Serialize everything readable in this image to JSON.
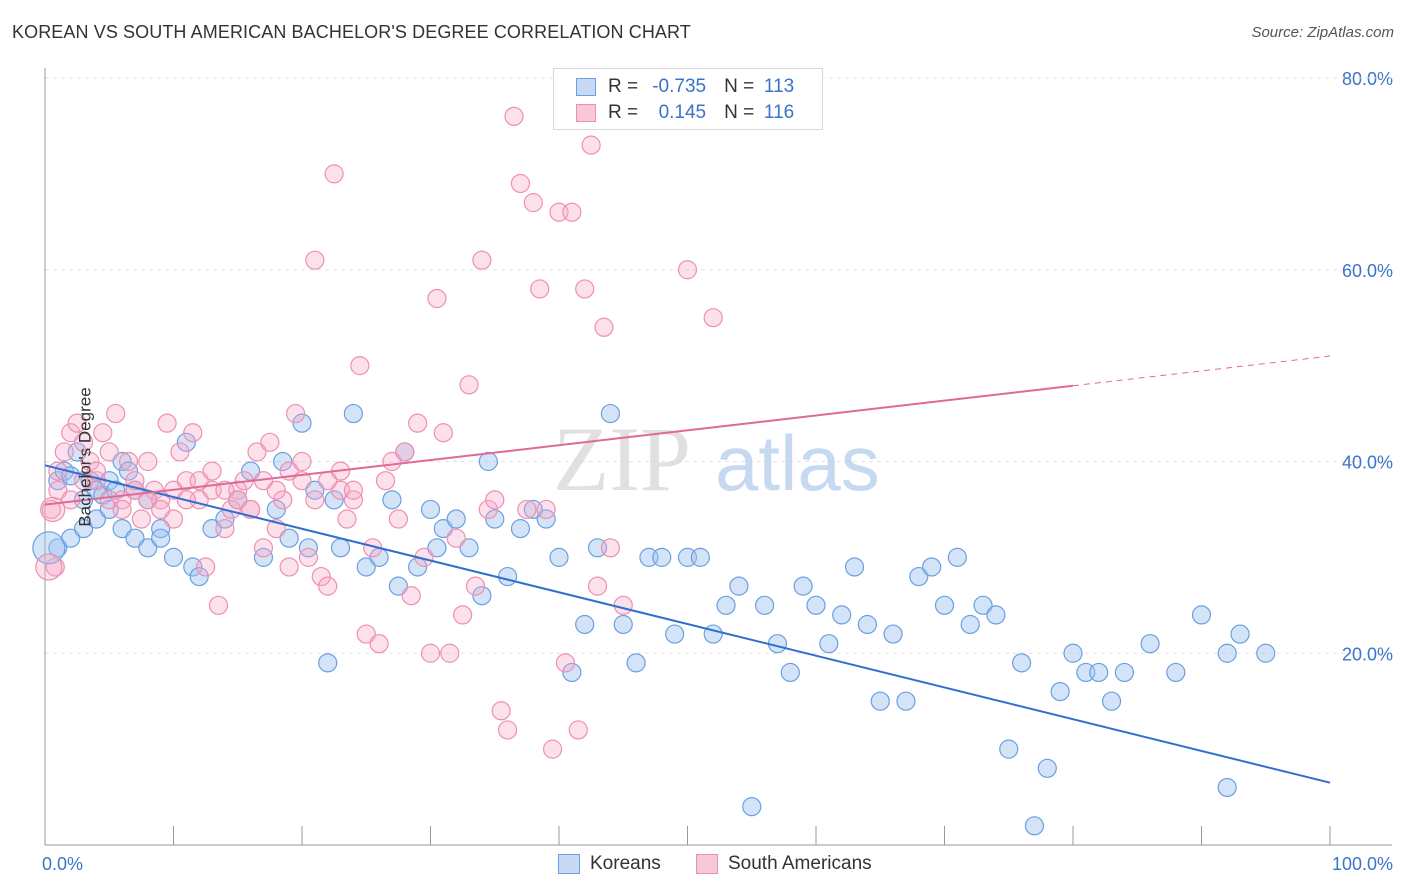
{
  "title": "KOREAN VS SOUTH AMERICAN BACHELOR'S DEGREE CORRELATION CHART",
  "source": "Source: ZipAtlas.com",
  "watermark": {
    "zip": "ZIP",
    "atlas": "atlas"
  },
  "legend": {
    "rows": [
      {
        "r_label": "R =",
        "r_value": "-0.735",
        "n_label": "N =",
        "n_value": "113",
        "color": "#6b9fe0"
      },
      {
        "r_label": "R =",
        "r_value": "0.145",
        "n_label": "N =",
        "n_value": "116",
        "color": "#ef8fb0"
      }
    ]
  },
  "bottom_legend": [
    {
      "label": "Koreans",
      "color": "#6b9fe0"
    },
    {
      "label": "South Americans",
      "color": "#ef8fb0"
    }
  ],
  "chart_data": {
    "type": "scatter",
    "title": "KOREAN VS SOUTH AMERICAN BACHELOR'S DEGREE CORRELATION CHART",
    "xlabel": "",
    "ylabel": "Bachelor's Degree",
    "xlim": [
      0,
      100
    ],
    "ylim": [
      0,
      80
    ],
    "x_tick_labels": [
      "0.0%",
      "100.0%"
    ],
    "y_tick_labels": [
      "20.0%",
      "40.0%",
      "60.0%",
      "80.0%"
    ],
    "y_ticks": [
      20,
      40,
      60,
      80
    ],
    "grid": true,
    "series": [
      {
        "name": "Koreans",
        "color": "#6b9fe0",
        "line_color": "#2f6fcf",
        "trend": {
          "x": [
            0,
            100
          ],
          "y": [
            39.6,
            6.5
          ],
          "dashed_from": null
        },
        "points": [
          [
            1,
            38
          ],
          [
            1.5,
            39
          ],
          [
            2,
            38.5
          ],
          [
            2.5,
            41
          ],
          [
            3,
            36
          ],
          [
            3.5,
            38
          ],
          [
            4,
            37
          ],
          [
            4.5,
            36.5
          ],
          [
            5,
            38
          ],
          [
            5.5,
            37
          ],
          [
            6,
            40
          ],
          [
            6.5,
            39
          ],
          [
            7,
            37
          ],
          [
            8,
            36
          ],
          [
            9,
            33
          ],
          [
            10,
            30
          ],
          [
            11,
            42
          ],
          [
            11.5,
            29
          ],
          [
            12,
            28
          ],
          [
            13,
            33
          ],
          [
            14,
            34
          ],
          [
            15,
            36
          ],
          [
            16,
            39
          ],
          [
            17,
            30
          ],
          [
            18,
            35
          ],
          [
            18.5,
            40
          ],
          [
            19,
            32
          ],
          [
            20,
            44
          ],
          [
            20.5,
            31
          ],
          [
            21,
            37
          ],
          [
            22,
            19
          ],
          [
            22.5,
            36
          ],
          [
            23,
            31
          ],
          [
            24,
            45
          ],
          [
            25,
            29
          ],
          [
            26,
            30
          ],
          [
            27,
            36
          ],
          [
            27.5,
            27
          ],
          [
            28,
            41
          ],
          [
            29,
            29
          ],
          [
            30,
            35
          ],
          [
            30.5,
            31
          ],
          [
            31,
            33
          ],
          [
            32,
            34
          ],
          [
            33,
            31
          ],
          [
            34,
            26
          ],
          [
            34.5,
            40
          ],
          [
            35,
            34
          ],
          [
            36,
            28
          ],
          [
            37,
            33
          ],
          [
            38,
            35
          ],
          [
            39,
            34
          ],
          [
            40,
            30
          ],
          [
            41,
            18
          ],
          [
            42,
            23
          ],
          [
            43,
            31
          ],
          [
            44,
            45
          ],
          [
            45,
            23
          ],
          [
            46,
            19
          ],
          [
            47,
            30
          ],
          [
            48,
            30
          ],
          [
            49,
            22
          ],
          [
            50,
            30
          ],
          [
            51,
            30
          ],
          [
            52,
            22
          ],
          [
            53,
            25
          ],
          [
            54,
            27
          ],
          [
            55,
            4
          ],
          [
            56,
            25
          ],
          [
            57,
            21
          ],
          [
            58,
            18
          ],
          [
            59,
            27
          ],
          [
            60,
            25
          ],
          [
            61,
            21
          ],
          [
            62,
            24
          ],
          [
            63,
            29
          ],
          [
            64,
            23
          ],
          [
            65,
            15
          ],
          [
            66,
            22
          ],
          [
            67,
            15
          ],
          [
            68,
            28
          ],
          [
            69,
            29
          ],
          [
            70,
            25
          ],
          [
            71,
            30
          ],
          [
            72,
            23
          ],
          [
            73,
            25
          ],
          [
            74,
            24
          ],
          [
            75,
            10
          ],
          [
            76,
            19
          ],
          [
            77,
            2
          ],
          [
            78,
            8
          ],
          [
            79,
            16
          ],
          [
            80,
            20
          ],
          [
            81,
            18
          ],
          [
            82,
            18
          ],
          [
            83,
            15
          ],
          [
            84,
            18
          ],
          [
            86,
            21
          ],
          [
            88,
            18
          ],
          [
            90,
            24
          ],
          [
            92,
            20
          ],
          [
            93,
            22
          ],
          [
            95,
            20
          ],
          [
            1,
            31
          ],
          [
            2,
            32
          ],
          [
            3,
            33
          ],
          [
            4,
            34
          ],
          [
            5,
            35
          ],
          [
            6,
            33
          ],
          [
            7,
            32
          ],
          [
            8,
            31
          ],
          [
            9,
            32
          ],
          [
            92,
            6
          ]
        ]
      },
      {
        "name": "South Americans",
        "color": "#ef8fb0",
        "line_color": "#e06a93",
        "trend": {
          "x": [
            0,
            100
          ],
          "y": [
            35.5,
            51
          ],
          "dashed_from": 80
        },
        "points": [
          [
            0.5,
            35
          ],
          [
            0.8,
            29
          ],
          [
            1,
            39
          ],
          [
            1.5,
            41
          ],
          [
            2,
            43
          ],
          [
            2.5,
            44
          ],
          [
            3,
            42
          ],
          [
            3.5,
            40
          ],
          [
            4,
            38
          ],
          [
            4.5,
            43
          ],
          [
            5,
            41
          ],
          [
            5.5,
            45
          ],
          [
            6,
            36
          ],
          [
            6.5,
            40
          ],
          [
            7,
            38
          ],
          [
            7.5,
            34
          ],
          [
            8,
            40
          ],
          [
            8.5,
            37
          ],
          [
            9,
            36
          ],
          [
            9.5,
            44
          ],
          [
            10,
            34
          ],
          [
            10.5,
            41
          ],
          [
            11,
            38
          ],
          [
            11.5,
            43
          ],
          [
            12,
            36
          ],
          [
            12.5,
            29
          ],
          [
            13,
            37
          ],
          [
            13.5,
            25
          ],
          [
            14,
            33
          ],
          [
            14.5,
            35
          ],
          [
            15,
            37
          ],
          [
            15.5,
            38
          ],
          [
            16,
            35
          ],
          [
            16.5,
            41
          ],
          [
            17,
            31
          ],
          [
            17.5,
            42
          ],
          [
            18,
            33
          ],
          [
            18.5,
            36
          ],
          [
            19,
            29
          ],
          [
            19.5,
            45
          ],
          [
            20,
            38
          ],
          [
            20.5,
            30
          ],
          [
            21,
            61
          ],
          [
            21.5,
            28
          ],
          [
            22,
            27
          ],
          [
            22.5,
            70
          ],
          [
            23,
            37
          ],
          [
            23.5,
            34
          ],
          [
            24,
            36
          ],
          [
            24.5,
            50
          ],
          [
            25,
            22
          ],
          [
            25.5,
            31
          ],
          [
            26,
            21
          ],
          [
            26.5,
            38
          ],
          [
            27,
            40
          ],
          [
            27.5,
            34
          ],
          [
            28,
            41
          ],
          [
            28.5,
            26
          ],
          [
            29,
            44
          ],
          [
            29.5,
            30
          ],
          [
            30,
            20
          ],
          [
            30.5,
            57
          ],
          [
            31,
            43
          ],
          [
            31.5,
            20
          ],
          [
            32,
            32
          ],
          [
            32.5,
            24
          ],
          [
            33,
            48
          ],
          [
            33.5,
            27
          ],
          [
            34,
            61
          ],
          [
            34.5,
            35
          ],
          [
            35,
            36
          ],
          [
            35.5,
            14
          ],
          [
            36,
            12
          ],
          [
            36.5,
            76
          ],
          [
            37,
            69
          ],
          [
            37.5,
            35
          ],
          [
            38,
            67
          ],
          [
            38.5,
            58
          ],
          [
            39,
            35
          ],
          [
            39.5,
            10
          ],
          [
            40,
            66
          ],
          [
            40.5,
            19
          ],
          [
            41,
            66
          ],
          [
            41.5,
            12
          ],
          [
            42,
            58
          ],
          [
            42.5,
            73
          ],
          [
            43,
            27
          ],
          [
            43.5,
            54
          ],
          [
            44,
            31
          ],
          [
            45,
            25
          ],
          [
            50,
            60
          ],
          [
            52,
            55
          ],
          [
            1,
            37
          ],
          [
            2,
            36
          ],
          [
            3,
            38
          ],
          [
            4,
            39
          ],
          [
            5,
            36
          ],
          [
            6,
            35
          ],
          [
            7,
            37
          ],
          [
            8,
            36
          ],
          [
            9,
            35
          ],
          [
            10,
            37
          ],
          [
            11,
            36
          ],
          [
            12,
            38
          ],
          [
            13,
            39
          ],
          [
            14,
            37
          ],
          [
            15,
            36
          ],
          [
            16,
            35
          ],
          [
            17,
            38
          ],
          [
            18,
            37
          ],
          [
            19,
            39
          ],
          [
            20,
            40
          ],
          [
            21,
            36
          ],
          [
            22,
            38
          ],
          [
            23,
            39
          ],
          [
            24,
            37
          ]
        ]
      }
    ]
  }
}
